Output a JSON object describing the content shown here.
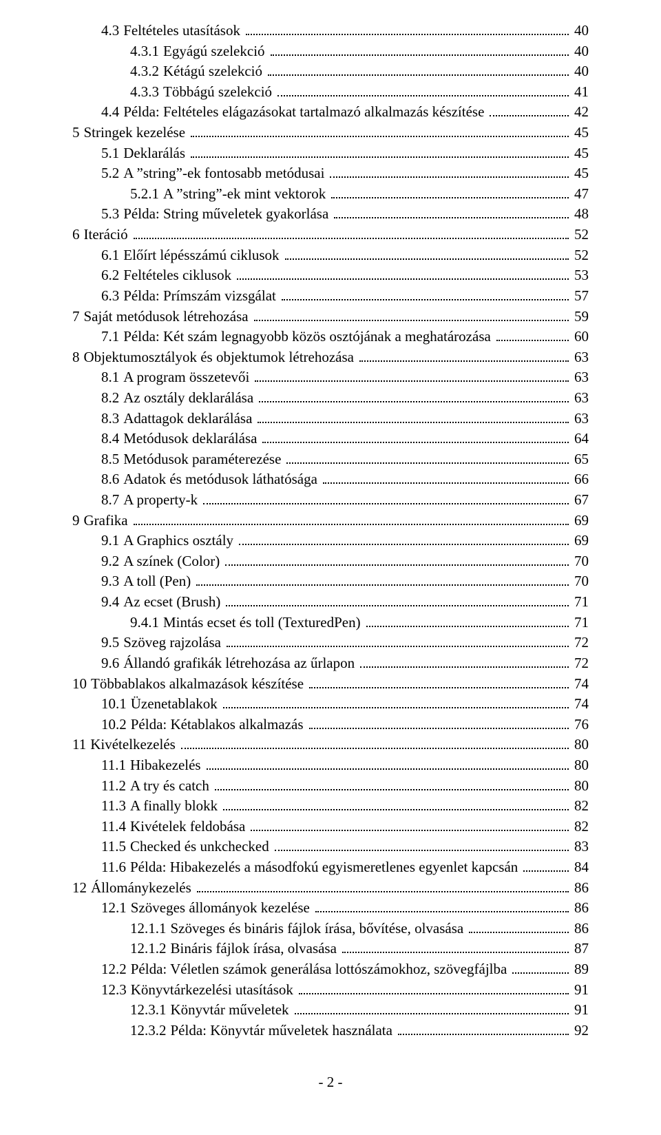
{
  "toc": [
    {
      "indent": 1,
      "num": "4.3",
      "title": "Feltételes utasítások",
      "page": "40"
    },
    {
      "indent": 2,
      "num": "4.3.1",
      "title": "Egyágú szelekció",
      "page": "40"
    },
    {
      "indent": 2,
      "num": "4.3.2",
      "title": "Kétágú szelekció",
      "page": "40"
    },
    {
      "indent": 2,
      "num": "4.3.3",
      "title": "Többágú szelekció",
      "page": "41"
    },
    {
      "indent": 1,
      "num": "4.4",
      "title": "Példa: Feltételes elágazásokat tartalmazó alkalmazás készítése",
      "page": "42"
    },
    {
      "indent": 0,
      "num": "5",
      "title": "Stringek kezelése",
      "page": "45"
    },
    {
      "indent": 1,
      "num": "5.1",
      "title": "Deklarálás",
      "page": "45"
    },
    {
      "indent": 1,
      "num": "5.2",
      "title": "A ”string”-ek fontosabb metódusai",
      "page": "45"
    },
    {
      "indent": 2,
      "num": "5.2.1",
      "title": "A ”string”-ek mint vektorok",
      "page": "47"
    },
    {
      "indent": 1,
      "num": "5.3",
      "title": "Példa: String műveletek gyakorlása",
      "page": "48"
    },
    {
      "indent": 0,
      "num": "6",
      "title": "Iteráció",
      "page": "52"
    },
    {
      "indent": 1,
      "num": "6.1",
      "title": "Előírt lépésszámú ciklusok",
      "page": "52"
    },
    {
      "indent": 1,
      "num": "6.2",
      "title": "Feltételes ciklusok",
      "page": "53"
    },
    {
      "indent": 1,
      "num": "6.3",
      "title": "Példa: Prímszám vizsgálat",
      "page": "57"
    },
    {
      "indent": 0,
      "num": "7",
      "title": "Saját metódusok létrehozása",
      "page": "59"
    },
    {
      "indent": 1,
      "num": "7.1",
      "title": "Példa: Két szám legnagyobb közös osztójának a meghatározása",
      "page": "60"
    },
    {
      "indent": 0,
      "num": "8",
      "title": "Objektumosztályok és objektumok létrehozása",
      "page": "63"
    },
    {
      "indent": 1,
      "num": "8.1",
      "title": "A program összetevői",
      "page": "63"
    },
    {
      "indent": 1,
      "num": "8.2",
      "title": "Az osztály deklarálása",
      "page": "63"
    },
    {
      "indent": 1,
      "num": "8.3",
      "title": "Adattagok deklarálása",
      "page": "63"
    },
    {
      "indent": 1,
      "num": "8.4",
      "title": "Metódusok deklarálása",
      "page": "64"
    },
    {
      "indent": 1,
      "num": "8.5",
      "title": "Metódusok paraméterezése",
      "page": "65"
    },
    {
      "indent": 1,
      "num": "8.6",
      "title": "Adatok és metódusok láthatósága",
      "page": "66"
    },
    {
      "indent": 1,
      "num": "8.7",
      "title": "A property-k",
      "page": "67"
    },
    {
      "indent": 0,
      "num": "9",
      "title": "Grafika",
      "page": "69"
    },
    {
      "indent": 1,
      "num": "9.1",
      "title": "A Graphics osztály",
      "page": "69"
    },
    {
      "indent": 1,
      "num": "9.2",
      "title": "A színek (Color)",
      "page": "70"
    },
    {
      "indent": 1,
      "num": "9.3",
      "title": "A toll (Pen)",
      "page": "70"
    },
    {
      "indent": 1,
      "num": "9.4",
      "title": "Az ecset (Brush)",
      "page": "71"
    },
    {
      "indent": 2,
      "num": "9.4.1",
      "title": "Mintás ecset és toll (TexturedPen)",
      "page": "71"
    },
    {
      "indent": 1,
      "num": "9.5",
      "title": "Szöveg rajzolása",
      "page": "72"
    },
    {
      "indent": 1,
      "num": "9.6",
      "title": "Állandó grafikák létrehozása az űrlapon",
      "page": "72"
    },
    {
      "indent": 0,
      "num": "10",
      "title": "Többablakos alkalmazások készítése",
      "page": "74"
    },
    {
      "indent": 1,
      "num": "10.1",
      "title": "Üzenetablakok",
      "page": "74"
    },
    {
      "indent": 1,
      "num": "10.2",
      "title": "Példa: Kétablakos alkalmazás",
      "page": "76"
    },
    {
      "indent": 0,
      "num": "11",
      "title": "Kivételkezelés",
      "page": "80"
    },
    {
      "indent": 1,
      "num": "11.1",
      "title": "Hibakezelés",
      "page": "80"
    },
    {
      "indent": 1,
      "num": "11.2",
      "title": "A try és catch",
      "page": "80"
    },
    {
      "indent": 1,
      "num": "11.3",
      "title": "A finally blokk",
      "page": "82"
    },
    {
      "indent": 1,
      "num": "11.4",
      "title": "Kivételek feldobása",
      "page": "82"
    },
    {
      "indent": 1,
      "num": "11.5",
      "title": "Checked és unkchecked",
      "page": "83"
    },
    {
      "indent": 1,
      "num": "11.6",
      "title": "Példa: Hibakezelés a másodfokú egyismeretlenes egyenlet kapcsán",
      "page": "84"
    },
    {
      "indent": 0,
      "num": "12",
      "title": "Állománykezelés",
      "page": "86"
    },
    {
      "indent": 1,
      "num": "12.1",
      "title": "Szöveges állományok kezelése",
      "page": "86"
    },
    {
      "indent": 2,
      "num": "12.1.1",
      "title": "Szöveges és bináris fájlok írása, bővítése, olvasása",
      "page": "86"
    },
    {
      "indent": 2,
      "num": "12.1.2",
      "title": "Bináris fájlok írása, olvasása",
      "page": "87"
    },
    {
      "indent": 1,
      "num": "12.2",
      "title": "Példa: Véletlen számok generálása lottószámokhoz, szövegfájlba",
      "page": "89"
    },
    {
      "indent": 1,
      "num": "12.3",
      "title": "Könyvtárkezelési utasítások",
      "page": "91"
    },
    {
      "indent": 2,
      "num": "12.3.1",
      "title": "Könyvtár műveletek",
      "page": "91"
    },
    {
      "indent": 2,
      "num": "12.3.2",
      "title": "Példa: Könyvtár műveletek használata",
      "page": "92"
    }
  ],
  "footer": "- 2 -"
}
